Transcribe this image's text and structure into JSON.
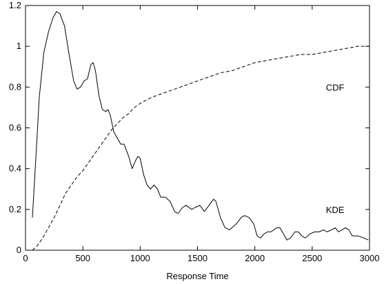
{
  "chart_data": {
    "type": "line",
    "title": "",
    "xlabel": "Response Time",
    "ylabel": "",
    "xlim": [
      0,
      3000
    ],
    "ylim": [
      0,
      1.2
    ],
    "grid": false,
    "legend": "none",
    "x_ticks": [
      0,
      500,
      1000,
      1500,
      2000,
      2500,
      3000
    ],
    "x_tick_labels": [
      "0",
      "500",
      "1000",
      "1500",
      "2000",
      "2500",
      "3000"
    ],
    "y_ticks": [
      0,
      0.2,
      0.4,
      0.6,
      0.8,
      1.0,
      1.2
    ],
    "y_tick_labels": [
      "0",
      "0.2",
      "0.4",
      "0.6",
      "0.8",
      "1",
      "1.2"
    ],
    "series": [
      {
        "name": "KDE",
        "style": "solid",
        "color": "#000000",
        "label_at": [
          2700,
          0.2
        ],
        "points": [
          [
            60,
            0.16
          ],
          [
            90,
            0.45
          ],
          [
            120,
            0.75
          ],
          [
            160,
            0.97
          ],
          [
            200,
            1.07
          ],
          [
            240,
            1.14
          ],
          [
            270,
            1.17
          ],
          [
            300,
            1.16
          ],
          [
            340,
            1.1
          ],
          [
            380,
            0.96
          ],
          [
            420,
            0.83
          ],
          [
            450,
            0.79
          ],
          [
            480,
            0.8
          ],
          [
            510,
            0.83
          ],
          [
            540,
            0.84
          ],
          [
            570,
            0.91
          ],
          [
            590,
            0.92
          ],
          [
            610,
            0.88
          ],
          [
            640,
            0.76
          ],
          [
            670,
            0.69
          ],
          [
            700,
            0.68
          ],
          [
            720,
            0.69
          ],
          [
            740,
            0.66
          ],
          [
            770,
            0.58
          ],
          [
            800,
            0.55
          ],
          [
            830,
            0.52
          ],
          [
            860,
            0.52
          ],
          [
            900,
            0.46
          ],
          [
            930,
            0.4
          ],
          [
            960,
            0.44
          ],
          [
            980,
            0.46
          ],
          [
            1000,
            0.45
          ],
          [
            1030,
            0.37
          ],
          [
            1060,
            0.32
          ],
          [
            1090,
            0.3
          ],
          [
            1120,
            0.32
          ],
          [
            1150,
            0.3
          ],
          [
            1180,
            0.26
          ],
          [
            1220,
            0.26
          ],
          [
            1260,
            0.24
          ],
          [
            1300,
            0.19
          ],
          [
            1330,
            0.18
          ],
          [
            1370,
            0.21
          ],
          [
            1400,
            0.22
          ],
          [
            1450,
            0.2
          ],
          [
            1480,
            0.21
          ],
          [
            1520,
            0.22
          ],
          [
            1560,
            0.19
          ],
          [
            1600,
            0.22
          ],
          [
            1640,
            0.25
          ],
          [
            1660,
            0.24
          ],
          [
            1700,
            0.16
          ],
          [
            1740,
            0.11
          ],
          [
            1780,
            0.1
          ],
          [
            1840,
            0.13
          ],
          [
            1880,
            0.16
          ],
          [
            1910,
            0.17
          ],
          [
            1950,
            0.16
          ],
          [
            1990,
            0.13
          ],
          [
            2020,
            0.07
          ],
          [
            2050,
            0.06
          ],
          [
            2080,
            0.08
          ],
          [
            2110,
            0.09
          ],
          [
            2140,
            0.09
          ],
          [
            2190,
            0.11
          ],
          [
            2220,
            0.11
          ],
          [
            2250,
            0.08
          ],
          [
            2280,
            0.05
          ],
          [
            2310,
            0.06
          ],
          [
            2350,
            0.09
          ],
          [
            2380,
            0.09
          ],
          [
            2410,
            0.07
          ],
          [
            2440,
            0.06
          ],
          [
            2480,
            0.08
          ],
          [
            2520,
            0.09
          ],
          [
            2560,
            0.09
          ],
          [
            2600,
            0.1
          ],
          [
            2630,
            0.09
          ],
          [
            2670,
            0.1
          ],
          [
            2700,
            0.11
          ],
          [
            2730,
            0.09
          ],
          [
            2760,
            0.1
          ],
          [
            2790,
            0.11
          ],
          [
            2820,
            0.1
          ],
          [
            2850,
            0.07
          ],
          [
            2900,
            0.07
          ],
          [
            2950,
            0.06
          ],
          [
            2990,
            0.05
          ]
        ]
      },
      {
        "name": "CDF",
        "style": "dashed",
        "color": "#000000",
        "label_at": [
          2700,
          0.8
        ],
        "points": [
          [
            60,
            0.0
          ],
          [
            100,
            0.02
          ],
          [
            150,
            0.06
          ],
          [
            200,
            0.11
          ],
          [
            250,
            0.16
          ],
          [
            300,
            0.22
          ],
          [
            350,
            0.28
          ],
          [
            400,
            0.32
          ],
          [
            450,
            0.36
          ],
          [
            500,
            0.39
          ],
          [
            550,
            0.43
          ],
          [
            600,
            0.47
          ],
          [
            650,
            0.51
          ],
          [
            700,
            0.55
          ],
          [
            750,
            0.59
          ],
          [
            800,
            0.62
          ],
          [
            850,
            0.65
          ],
          [
            900,
            0.67
          ],
          [
            950,
            0.7
          ],
          [
            1000,
            0.72
          ],
          [
            1100,
            0.75
          ],
          [
            1200,
            0.77
          ],
          [
            1300,
            0.79
          ],
          [
            1400,
            0.81
          ],
          [
            1500,
            0.83
          ],
          [
            1600,
            0.85
          ],
          [
            1700,
            0.87
          ],
          [
            1800,
            0.88
          ],
          [
            1900,
            0.9
          ],
          [
            2000,
            0.92
          ],
          [
            2100,
            0.93
          ],
          [
            2200,
            0.94
          ],
          [
            2300,
            0.95
          ],
          [
            2400,
            0.96
          ],
          [
            2500,
            0.96
          ],
          [
            2600,
            0.97
          ],
          [
            2700,
            0.98
          ],
          [
            2800,
            0.99
          ],
          [
            2900,
            1.0
          ],
          [
            3000,
            1.0
          ]
        ]
      }
    ]
  }
}
